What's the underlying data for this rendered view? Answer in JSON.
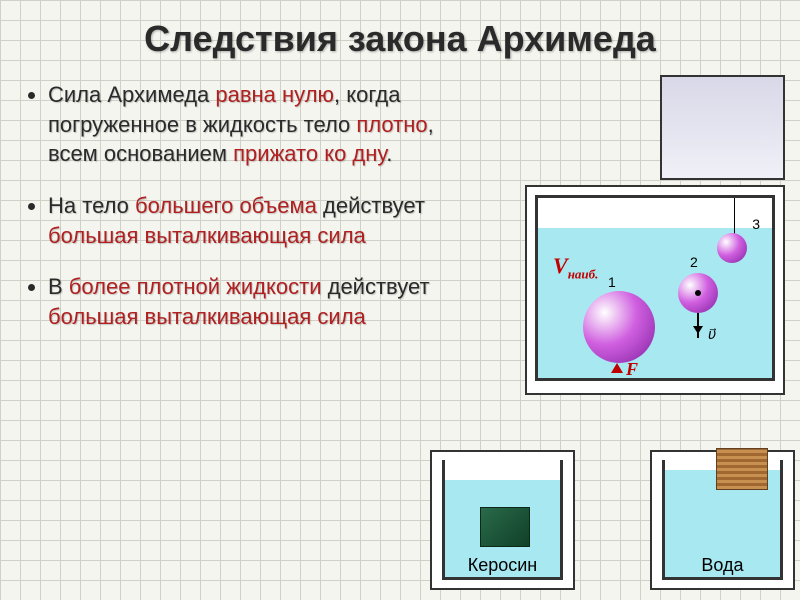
{
  "title": "Следствия закона Архимеда",
  "bullets": [
    {
      "pre": "Сила Архимеда ",
      "em1": "равна нулю",
      "mid": ", когда погруженное в жидкость тело ",
      "em2": "плотно",
      "mid2": ", всем основанием ",
      "em3": "прижато ко дну",
      "post": "."
    },
    {
      "pre": "На тело ",
      "em1": "большего объема",
      "mid": " действует ",
      "em2": "большая выталкивающая сила",
      "mid2": "",
      "em3": "",
      "post": ""
    },
    {
      "pre": "В ",
      "em1": "более плотной жидкости",
      "mid": " действует ",
      "em2": "большая выталкивающая сила",
      "mid2": "",
      "em3": "",
      "post": ""
    }
  ],
  "fig_main": {
    "ball_labels": {
      "n1": "1",
      "n2": "2",
      "n3": "3"
    },
    "v_label": "V",
    "v_sub": "наиб.",
    "f_label": "F",
    "arrow_label": "υ⃗"
  },
  "beakers": {
    "left_caption": "Керосин",
    "right_caption": "Вода"
  },
  "colors": {
    "emphasis": "#b02020",
    "water": "#a8e8f0",
    "ball_gradient": [
      "#ffffff",
      "#d060e0",
      "#8020a0"
    ],
    "green_block": "#2a6a4a",
    "wood_block": "#c89050"
  }
}
